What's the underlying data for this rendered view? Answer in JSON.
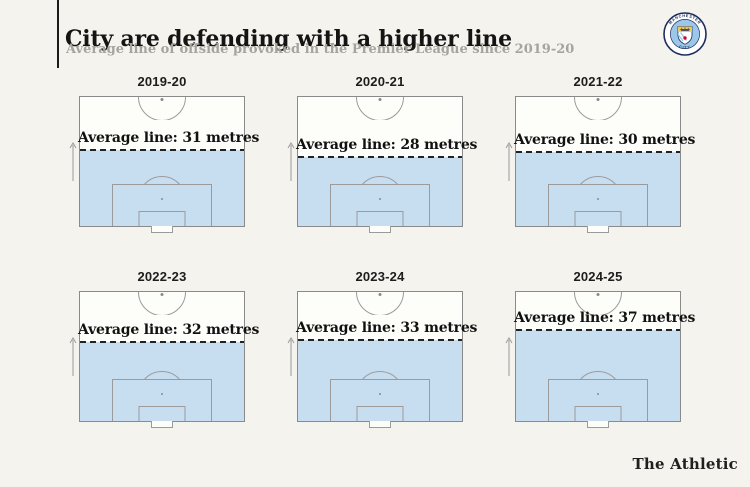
{
  "page": {
    "background": "#f4f3ee"
  },
  "header": {
    "title": "City are defending with a higher line",
    "subtitle": "Average line of offside provoked in the Premier League since 2019-20",
    "accent_color": "#1a1a1a",
    "title_color": "#141414",
    "subtitle_color": "#a6a59d"
  },
  "badge": {
    "name": "Manchester City crest",
    "ring_text_top": "MANCHESTER",
    "ring_text_bottom": "CITY",
    "colors": {
      "navy": "#1c2e5e",
      "sky": "#9cc7e8",
      "white": "#ffffff",
      "gold": "#edc65f",
      "red": "#c8102e"
    }
  },
  "chart_data": {
    "type": "area",
    "subtype": "football-pitch-small-multiples",
    "title": "City are defending with a higher line",
    "subtitle": "Average line of offside provoked in the Premier League since 2019-20",
    "unit": "metres",
    "ylim": [
      0,
      52.5
    ],
    "categories": [
      "2019-20",
      "2020-21",
      "2021-22",
      "2022-23",
      "2023-24",
      "2024-25"
    ],
    "values": [
      31,
      28,
      30,
      32,
      33,
      37
    ],
    "seasons": [
      {
        "season": "2019-20",
        "metres": 31,
        "label": "Average line: 31 metres"
      },
      {
        "season": "2020-21",
        "metres": 28,
        "label": "Average line: 28 metres"
      },
      {
        "season": "2021-22",
        "metres": 30,
        "label": "Average line: 30 metres"
      },
      {
        "season": "2022-23",
        "metres": 32,
        "label": "Average line: 32 metres"
      },
      {
        "season": "2023-24",
        "metres": 33,
        "label": "Average line: 33 metres"
      },
      {
        "season": "2024-25",
        "metres": 37,
        "label": "Average line: 37 metres"
      }
    ],
    "shade_color": "#c7ddf0",
    "pitch_line_color": "#9b9b9b",
    "dashed_line_color": "#222222",
    "legend": "none",
    "grid": false
  },
  "footer": {
    "brand": "The Athletic"
  }
}
